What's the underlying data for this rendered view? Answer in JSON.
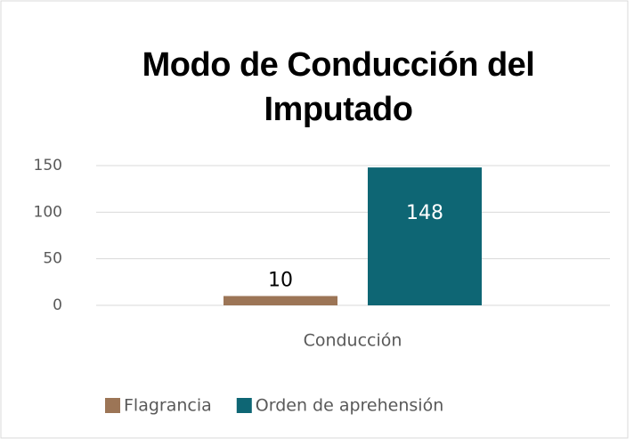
{
  "chart_data": {
    "type": "bar",
    "title": [
      "Modo de Conducción del",
      "Imputado"
    ],
    "categories": [
      "Conducción"
    ],
    "series": [
      {
        "name": "Flagrancia",
        "color": "#9c7556",
        "values": [
          10
        ],
        "label_color": "#000000"
      },
      {
        "name": "Orden de aprehensión",
        "color": "#0e6674",
        "values": [
          148
        ],
        "label_color": "#ffffff"
      }
    ],
    "ylim": [
      0,
      150
    ],
    "yticks": [
      0,
      50,
      100,
      150
    ],
    "grid": true,
    "legend": "bottom"
  }
}
